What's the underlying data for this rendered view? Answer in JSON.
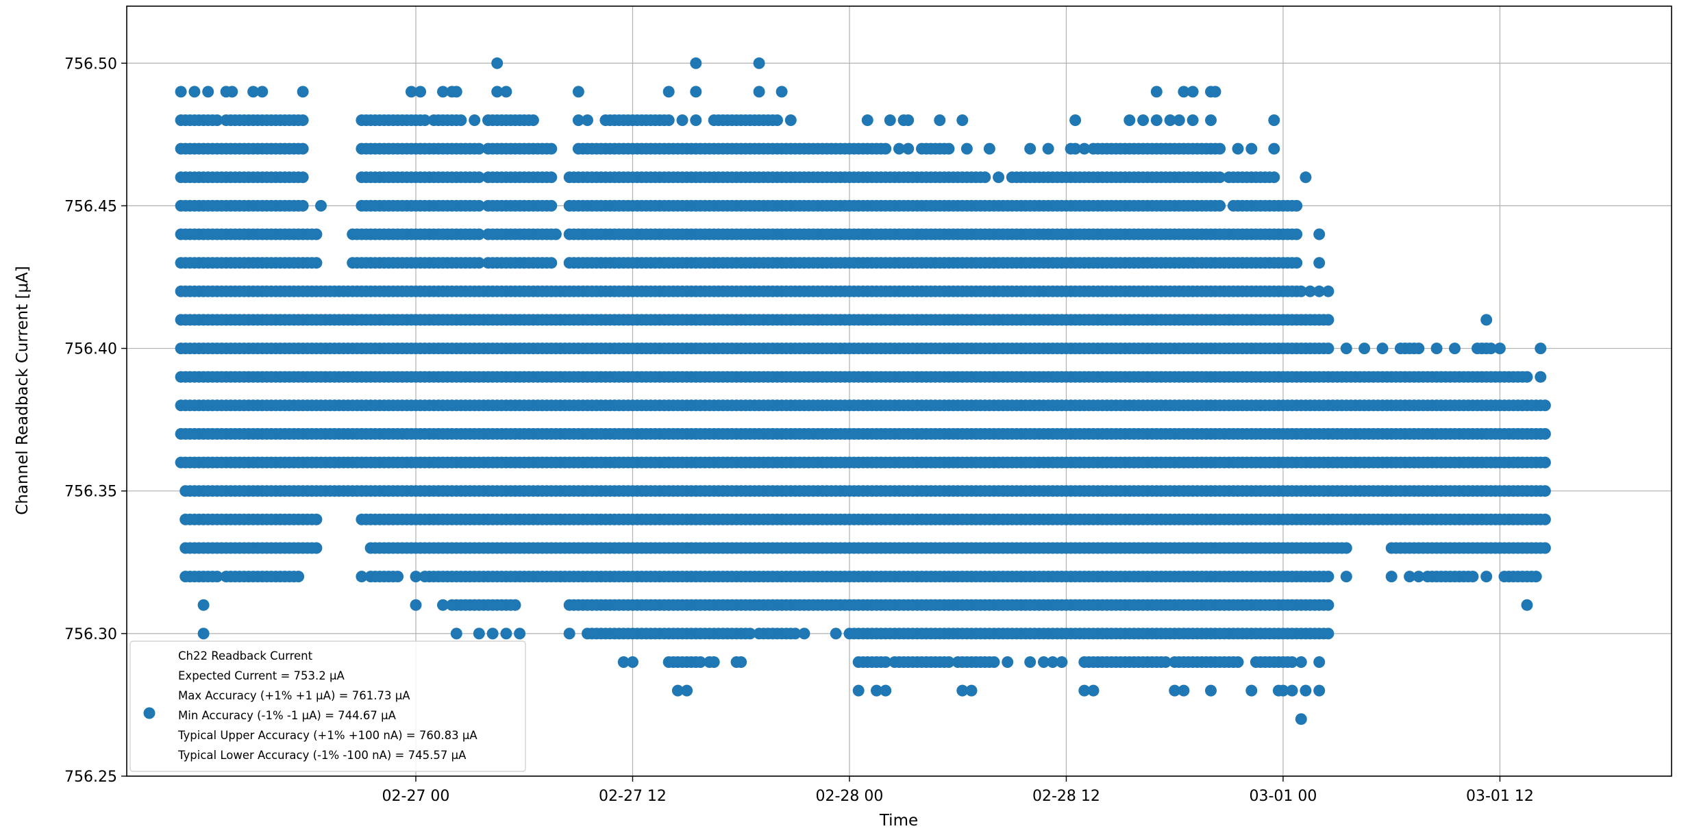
{
  "chart_data": {
    "type": "scatter",
    "title": "",
    "xlabel": "Time",
    "ylabel": "Channel Readback Current [μA]",
    "xlim": [
      "2026-02-26 08:00",
      "2026-03-01 21:30"
    ],
    "ylim": [
      756.25,
      756.52
    ],
    "x_tick_labels": [
      "02-27 00",
      "02-27 12",
      "02-28 00",
      "02-28 12",
      "03-01 00",
      "03-01 12"
    ],
    "y_tick_labels": [
      "756.25",
      "756.30",
      "756.35",
      "756.40",
      "756.45",
      "756.50"
    ],
    "grid": true,
    "legend_position": "lower-left",
    "marker_color": "#1f77b4",
    "series": [
      {
        "name": "Ch22 Readback Current",
        "legend_lines": [
          "Ch22 Readback Current",
          "Expected Current = 753.2 μA",
          "Max Accuracy (+1% +1 μA) = 761.73 μA",
          "Min Accuracy (-1% -1 μA) = 744.67 μA",
          "Typical Upper Accuracy (+1% +100 nA) = 760.83 μA",
          "Typical Lower Accuracy (-1% -100 nA) = 745.57 μA"
        ],
        "dense_bands": [
          {
            "y": 756.5,
            "segments": [],
            "points": [
              "2026-02-27 04:30",
              "2026-02-27 15:30",
              "2026-02-27 19:00"
            ]
          },
          {
            "y": 756.49,
            "segments": [],
            "points": [
              "2026-02-26 11:00",
              "2026-02-26 11:45",
              "2026-02-26 12:30",
              "2026-02-26 13:30",
              "2026-02-26 13:50",
              "2026-02-26 15:00",
              "2026-02-26 15:30",
              "2026-02-26 17:45",
              "2026-02-26 23:45",
              "2026-02-27 00:15",
              "2026-02-27 01:30",
              "2026-02-27 02:00",
              "2026-02-27 02:15",
              "2026-02-27 04:30",
              "2026-02-27 05:00",
              "2026-02-27 09:00",
              "2026-02-27 14:00",
              "2026-02-27 15:30",
              "2026-02-27 19:00",
              "2026-02-27 20:15",
              "2026-02-28 17:00",
              "2026-02-28 18:30",
              "2026-02-28 19:00",
              "2026-02-28 20:00",
              "2026-02-28 20:15"
            ]
          },
          {
            "y": 756.48,
            "segments": [
              [
                "2026-02-26 11:00",
                "2026-02-26 13:00"
              ],
              [
                "2026-02-26 13:30",
                "2026-02-26 17:45"
              ],
              [
                "2026-02-26 21:00",
                "2026-02-27 00:30"
              ],
              [
                "2026-02-27 01:00",
                "2026-02-27 02:30"
              ],
              [
                "2026-02-27 04:00",
                "2026-02-27 06:30"
              ],
              [
                "2026-02-27 10:30",
                "2026-02-27 14:00"
              ],
              [
                "2026-02-27 16:30",
                "2026-02-27 20:00"
              ]
            ],
            "points": [
              "2026-02-27 03:15",
              "2026-02-27 09:00",
              "2026-02-27 09:30",
              "2026-02-27 14:45",
              "2026-02-27 15:30",
              "2026-02-27 20:45",
              "2026-02-28 01:00",
              "2026-02-28 02:15",
              "2026-02-28 03:00",
              "2026-02-28 03:15",
              "2026-02-28 05:00",
              "2026-02-28 06:15",
              "2026-02-28 12:30",
              "2026-02-28 15:30",
              "2026-02-28 16:15",
              "2026-02-28 17:00",
              "2026-02-28 17:45",
              "2026-02-28 18:15",
              "2026-02-28 19:00",
              "2026-02-28 20:00",
              "2026-02-28 23:30"
            ]
          },
          {
            "y": 756.47,
            "segments": [
              [
                "2026-02-26 11:00",
                "2026-02-26 17:45"
              ],
              [
                "2026-02-26 21:00",
                "2026-02-27 03:30"
              ],
              [
                "2026-02-27 04:00",
                "2026-02-27 07:30"
              ],
              [
                "2026-02-27 09:00",
                "2026-02-28 02:00"
              ],
              [
                "2026-02-28 04:00",
                "2026-02-28 05:30"
              ],
              [
                "2026-02-28 13:30",
                "2026-02-28 20:30"
              ]
            ],
            "points": [
              "2026-02-28 02:45",
              "2026-02-28 03:15",
              "2026-02-28 06:30",
              "2026-02-28 07:45",
              "2026-02-28 10:00",
              "2026-02-28 11:00",
              "2026-02-28 12:15",
              "2026-02-28 12:30",
              "2026-02-28 13:00",
              "2026-02-28 21:30",
              "2026-02-28 22:15",
              "2026-02-28 23:30"
            ]
          },
          {
            "y": 756.46,
            "segments": [
              [
                "2026-02-26 11:00",
                "2026-02-26 17:45"
              ],
              [
                "2026-02-26 21:00",
                "2026-02-27 03:30"
              ],
              [
                "2026-02-27 04:00",
                "2026-02-27 07:30"
              ],
              [
                "2026-02-27 08:30",
                "2026-02-28 07:30"
              ],
              [
                "2026-02-28 09:00",
                "2026-02-28 20:30"
              ],
              [
                "2026-02-28 21:00",
                "2026-02-28 23:30"
              ]
            ],
            "points": [
              "2026-02-28 08:15",
              "2026-03-01 01:15"
            ]
          },
          {
            "y": 756.45,
            "segments": [
              [
                "2026-02-26 11:00",
                "2026-02-26 17:45"
              ],
              [
                "2026-02-26 21:00",
                "2026-02-27 03:30"
              ],
              [
                "2026-02-27 04:00",
                "2026-02-27 07:30"
              ],
              [
                "2026-02-27 08:30",
                "2026-02-28 20:30"
              ],
              [
                "2026-02-28 21:30",
                "2026-03-01 00:45"
              ]
            ],
            "points": [
              "2026-02-26 18:45",
              "2026-02-28 21:15"
            ]
          },
          {
            "y": 756.44,
            "segments": [
              [
                "2026-02-26 11:00",
                "2026-02-26 18:30"
              ],
              [
                "2026-02-26 20:30",
                "2026-02-27 03:30"
              ],
              [
                "2026-02-27 04:00",
                "2026-02-27 07:45"
              ],
              [
                "2026-02-27 08:30",
                "2026-03-01 00:45"
              ]
            ],
            "points": [
              "2026-03-01 02:00"
            ]
          },
          {
            "y": 756.43,
            "segments": [
              [
                "2026-02-26 11:00",
                "2026-02-26 18:30"
              ],
              [
                "2026-02-26 20:30",
                "2026-02-27 03:30"
              ],
              [
                "2026-02-27 04:00",
                "2026-02-27 07:30"
              ],
              [
                "2026-02-27 08:30",
                "2026-03-01 00:45"
              ]
            ],
            "points": [
              "2026-03-01 02:00"
            ]
          },
          {
            "y": 756.42,
            "segments": [
              [
                "2026-02-26 11:00",
                "2026-03-01 01:00"
              ]
            ],
            "points": [
              "2026-03-01 01:30",
              "2026-03-01 02:00",
              "2026-03-01 02:30"
            ]
          },
          {
            "y": 756.41,
            "segments": [
              [
                "2026-02-26 11:00",
                "2026-03-01 02:30"
              ]
            ],
            "points": [
              "2026-03-01 11:15"
            ]
          },
          {
            "y": 756.4,
            "segments": [
              [
                "2026-02-26 11:00",
                "2026-03-01 02:30"
              ],
              [
                "2026-03-01 06:30",
                "2026-03-01 07:30"
              ],
              [
                "2026-03-01 10:45",
                "2026-03-01 11:30"
              ]
            ],
            "points": [
              "2026-03-01 03:30",
              "2026-03-01 04:30",
              "2026-03-01 05:30",
              "2026-03-01 08:30",
              "2026-03-01 09:30",
              "2026-03-01 12:00",
              "2026-03-01 14:15"
            ]
          },
          {
            "y": 756.39,
            "segments": [
              [
                "2026-02-26 11:00",
                "2026-03-01 13:30"
              ]
            ],
            "points": [
              "2026-03-01 14:15"
            ]
          },
          {
            "y": 756.38,
            "segments": [
              [
                "2026-02-26 11:00",
                "2026-03-01 14:30"
              ]
            ],
            "points": []
          },
          {
            "y": 756.37,
            "segments": [
              [
                "2026-02-26 11:00",
                "2026-03-01 14:30"
              ]
            ],
            "points": []
          },
          {
            "y": 756.36,
            "segments": [
              [
                "2026-02-26 11:00",
                "2026-03-01 14:30"
              ]
            ],
            "points": []
          },
          {
            "y": 756.35,
            "segments": [
              [
                "2026-02-26 11:15",
                "2026-03-01 14:30"
              ]
            ],
            "points": []
          },
          {
            "y": 756.34,
            "segments": [
              [
                "2026-02-26 11:15",
                "2026-02-26 18:30"
              ],
              [
                "2026-02-26 21:00",
                "2026-03-01 14:30"
              ]
            ],
            "points": []
          },
          {
            "y": 756.33,
            "segments": [
              [
                "2026-02-26 11:15",
                "2026-02-26 18:30"
              ],
              [
                "2026-02-26 21:30",
                "2026-03-01 03:30"
              ],
              [
                "2026-03-01 06:00",
                "2026-03-01 14:30"
              ]
            ],
            "points": []
          },
          {
            "y": 756.32,
            "segments": [
              [
                "2026-02-26 11:15",
                "2026-02-26 13:00"
              ],
              [
                "2026-02-26 13:30",
                "2026-02-26 17:30"
              ],
              [
                "2026-02-26 21:30",
                "2026-02-26 23:00"
              ],
              [
                "2026-02-27 00:30",
                "2026-03-01 02:30"
              ],
              [
                "2026-03-01 08:00",
                "2026-03-01 10:30"
              ],
              [
                "2026-03-01 12:15",
                "2026-03-01 14:00"
              ]
            ],
            "points": [
              "2026-02-26 21:00",
              "2026-02-27 00:00",
              "2026-03-01 03:30",
              "2026-03-01 06:00",
              "2026-03-01 07:00",
              "2026-03-01 07:30",
              "2026-03-01 11:15"
            ]
          },
          {
            "y": 756.31,
            "segments": [
              [
                "2026-02-27 02:00",
                "2026-02-27 05:30"
              ],
              [
                "2026-02-27 08:30",
                "2026-03-01 02:30"
              ]
            ],
            "points": [
              "2026-02-26 12:15",
              "2026-02-27 00:00",
              "2026-02-27 01:30",
              "2026-03-01 13:30"
            ]
          },
          {
            "y": 756.3,
            "segments": [
              [
                "2026-02-27 09:30",
                "2026-02-27 11:30"
              ],
              [
                "2026-02-27 12:00",
                "2026-02-27 18:30"
              ],
              [
                "2026-02-27 19:00",
                "2026-02-27 21:00"
              ],
              [
                "2026-02-28 00:00",
                "2026-03-01 02:30"
              ]
            ],
            "points": [
              "2026-02-26 12:15",
              "2026-02-27 02:15",
              "2026-02-27 03:30",
              "2026-02-27 04:15",
              "2026-02-27 05:00",
              "2026-02-27 05:45",
              "2026-02-27 08:30",
              "2026-02-27 11:45",
              "2026-02-27 21:30",
              "2026-02-27 23:15"
            ]
          },
          {
            "y": 756.29,
            "segments": [
              [
                "2026-02-27 14:00",
                "2026-02-27 15:30"
              ],
              [
                "2026-02-28 00:30",
                "2026-02-28 02:00"
              ],
              [
                "2026-02-28 02:30",
                "2026-02-28 05:30"
              ],
              [
                "2026-02-28 06:00",
                "2026-02-28 08:00"
              ],
              [
                "2026-02-28 13:00",
                "2026-02-28 17:30"
              ],
              [
                "2026-02-28 18:00",
                "2026-02-28 21:30"
              ],
              [
                "2026-02-28 22:30",
                "2026-03-01 00:30"
              ]
            ],
            "points": [
              "2026-02-27 11:30",
              "2026-02-27 12:00",
              "2026-02-27 15:45",
              "2026-02-27 16:15",
              "2026-02-27 16:30",
              "2026-02-27 17:45",
              "2026-02-27 18:00",
              "2026-02-28 08:45",
              "2026-02-28 10:00",
              "2026-02-28 10:45",
              "2026-02-28 11:15",
              "2026-02-28 11:45",
              "2026-03-01 01:00",
              "2026-03-01 02:00"
            ]
          },
          {
            "y": 756.28,
            "segments": [],
            "points": [
              "2026-02-27 14:30",
              "2026-02-27 15:00",
              "2026-02-28 00:30",
              "2026-02-28 01:30",
              "2026-02-28 02:00",
              "2026-02-28 06:15",
              "2026-02-28 06:45",
              "2026-02-28 13:00",
              "2026-02-28 13:30",
              "2026-02-28 18:00",
              "2026-02-28 18:30",
              "2026-02-28 20:00",
              "2026-02-28 22:15",
              "2026-02-28 23:45",
              "2026-03-01 00:00",
              "2026-03-01 00:30",
              "2026-03-01 01:15",
              "2026-03-01 02:00"
            ]
          },
          {
            "y": 756.27,
            "segments": [],
            "points": [
              "2026-03-01 01:00"
            ]
          }
        ]
      }
    ]
  }
}
